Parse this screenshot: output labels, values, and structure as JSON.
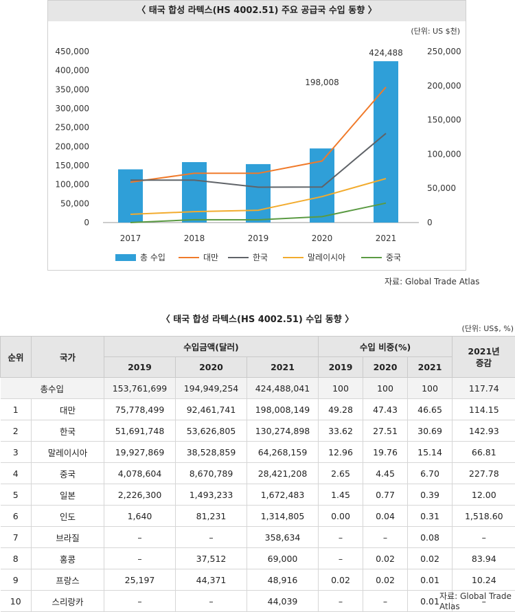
{
  "chart_data": {
    "type": "bar-line combo",
    "title": "〈 태국 합성 라텍스(HS 4002.51) 주요 공급국 수입 동향 〉",
    "unit_label": "(단위: US $천)",
    "categories": [
      "2017",
      "2018",
      "2019",
      "2020",
      "2021"
    ],
    "left_axis": {
      "range": [
        0,
        450000
      ],
      "ticks": [
        "0",
        "50,000",
        "100,000",
        "150,000",
        "200,000",
        "250,000",
        "300,000",
        "350,000",
        "400,000",
        "450,000"
      ]
    },
    "right_axis": {
      "range": [
        0,
        250000
      ],
      "ticks": [
        "0",
        "50,000",
        "100,000",
        "150,000",
        "200,000",
        "250,000"
      ]
    },
    "bar_series": {
      "name": "총 수입",
      "axis": "left",
      "color": "#2f9fd8",
      "values": [
        140000,
        159000,
        153762,
        194949,
        424488
      ]
    },
    "line_series": [
      {
        "name": "대만",
        "axis": "right",
        "color": "#f07a2a",
        "values": [
          59000,
          72000,
          72000,
          90000,
          198008
        ]
      },
      {
        "name": "한국",
        "axis": "right",
        "color": "#5f6368",
        "values": [
          62000,
          62000,
          51692,
          52000,
          130275
        ]
      },
      {
        "name": "말레이시아",
        "axis": "right",
        "color": "#f2ab2d",
        "values": [
          12000,
          16000,
          18000,
          38000,
          64268
        ]
      },
      {
        "name": "중국",
        "axis": "right",
        "color": "#5a9a42",
        "values": [
          0,
          4078,
          4000,
          8671,
          28421
        ]
      }
    ],
    "annotations": [
      {
        "text": "424,488"
      },
      {
        "text": "198,008"
      }
    ],
    "source": "자료: Global Trade Atlas"
  },
  "table": {
    "title": "〈 태국 합성 라텍스(HS 4002.51) 수입 동향 〉",
    "unit": "(단위: US$, %)",
    "headers": {
      "rank": "순위",
      "country": "국가",
      "amount_group": "수입금액(달러)",
      "share_group": "수입 비중(%)",
      "growth": "2021년\n증감",
      "years": [
        "2019",
        "2020",
        "2021"
      ]
    },
    "total_row": {
      "label": "총수입",
      "cells": [
        "153,761,699",
        "194,949,254",
        "424,488,041",
        "100",
        "100",
        "100",
        "117.74"
      ]
    },
    "rows": [
      {
        "rank": "1",
        "country": "대만",
        "cells": [
          "75,778,499",
          "92,461,741",
          "198,008,149",
          "49.28",
          "47.43",
          "46.65",
          "114.15"
        ]
      },
      {
        "rank": "2",
        "country": "한국",
        "cells": [
          "51,691,748",
          "53,626,805",
          "130,274,898",
          "33.62",
          "27.51",
          "30.69",
          "142.93"
        ]
      },
      {
        "rank": "3",
        "country": "말레이시아",
        "cells": [
          "19,927,869",
          "38,528,859",
          "64,268,159",
          "12.96",
          "19.76",
          "15.14",
          "66.81"
        ]
      },
      {
        "rank": "4",
        "country": "중국",
        "cells": [
          "4,078,604",
          "8,670,789",
          "28,421,208",
          "2.65",
          "4.45",
          "6.70",
          "227.78"
        ]
      },
      {
        "rank": "5",
        "country": "일본",
        "cells": [
          "2,226,300",
          "1,493,233",
          "1,672,483",
          "1.45",
          "0.77",
          "0.39",
          "12.00"
        ]
      },
      {
        "rank": "6",
        "country": "인도",
        "cells": [
          "1,640",
          "81,231",
          "1,314,805",
          "0.00",
          "0.04",
          "0.31",
          "1,518.60"
        ]
      },
      {
        "rank": "7",
        "country": "브라질",
        "cells": [
          "–",
          "–",
          "358,634",
          "–",
          "–",
          "0.08",
          "–"
        ]
      },
      {
        "rank": "8",
        "country": "홍콩",
        "cells": [
          "–",
          "37,512",
          "69,000",
          "–",
          "0.02",
          "0.02",
          "83.94"
        ]
      },
      {
        "rank": "9",
        "country": "프랑스",
        "cells": [
          "25,197",
          "44,371",
          "48,916",
          "0.02",
          "0.02",
          "0.01",
          "10.24"
        ]
      },
      {
        "rank": "10",
        "country": "스리랑카",
        "cells": [
          "–",
          "–",
          "44,039",
          "–",
          "–",
          "0.01",
          "–"
        ]
      }
    ],
    "source": "자료: Global Trade Atlas"
  }
}
